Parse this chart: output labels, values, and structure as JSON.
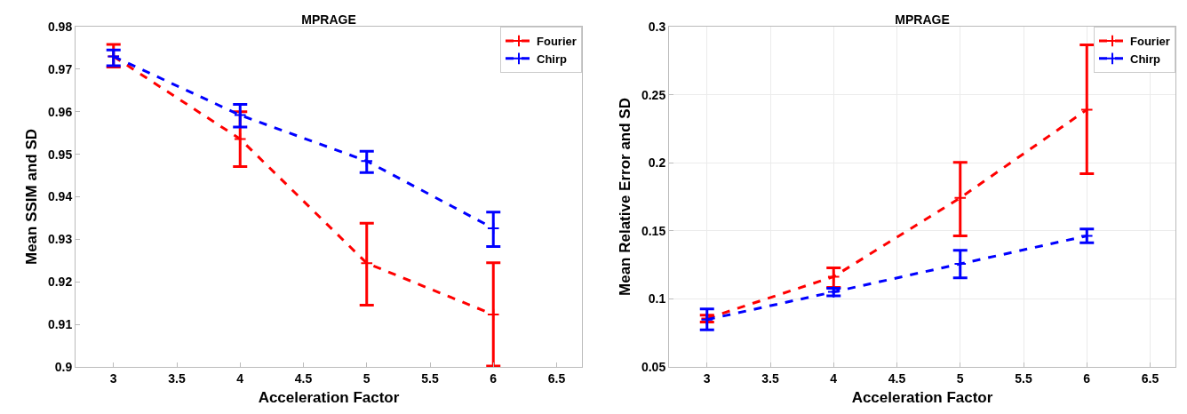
{
  "chart_data": [
    {
      "type": "line",
      "title": "MPRAGE",
      "xlabel": "Acceleration Factor",
      "ylabel": "Mean SSIM and SD",
      "x": [
        3,
        4,
        5,
        6
      ],
      "xlim": [
        2.7,
        6.7
      ],
      "xticks": [
        3,
        3.5,
        4,
        4.5,
        5,
        5.5,
        6,
        6.5
      ],
      "ylim": [
        0.9,
        0.98
      ],
      "yticks": [
        0.9,
        0.91,
        0.92,
        0.93,
        0.94,
        0.95,
        0.96,
        0.97,
        0.98
      ],
      "grid": false,
      "legend": "top right",
      "line_style": "dashed",
      "series": [
        {
          "name": "Fourier",
          "color": "#ff0000",
          "marker": "cross",
          "values": [
            0.973,
            0.9536,
            0.9244,
            0.9123
          ],
          "errors": [
            [
              0.9705,
              0.9758
            ],
            [
              0.9471,
              0.96
            ],
            [
              0.9145,
              0.9338
            ],
            [
              0.9002,
              0.9245
            ]
          ]
        },
        {
          "name": "Chirp",
          "color": "#0000ff",
          "marker": "cross",
          "values": [
            0.973,
            0.9592,
            0.9484,
            0.9326
          ],
          "errors": [
            [
              0.9708,
              0.9745
            ],
            [
              0.9564,
              0.9617
            ],
            [
              0.9457,
              0.9507
            ],
            [
              0.9283,
              0.9364
            ]
          ]
        }
      ]
    },
    {
      "type": "line",
      "title": "MPRAGE",
      "xlabel": "Acceleration Factor",
      "ylabel": "Mean Relative Error and SD",
      "x": [
        3,
        4,
        5,
        6
      ],
      "xlim": [
        2.7,
        6.7
      ],
      "xticks": [
        3,
        3.5,
        4,
        4.5,
        5,
        5.5,
        6,
        6.5
      ],
      "ylim": [
        0.05,
        0.3
      ],
      "yticks": [
        0.05,
        0.1,
        0.15,
        0.2,
        0.25,
        0.3
      ],
      "grid": true,
      "legend": "top right",
      "line_style": "dashed",
      "series": [
        {
          "name": "Fourier",
          "color": "#ff0000",
          "marker": "cross",
          "values": [
            0.0856,
            0.1163,
            0.1742,
            0.239
          ],
          "errors": [
            [
              0.083,
              0.088
            ],
            [
              0.1085,
              0.1227
            ],
            [
              0.1463,
              0.2003
            ],
            [
              0.192,
              0.2866
            ]
          ]
        },
        {
          "name": "Chirp",
          "color": "#0000ff",
          "marker": "cross",
          "values": [
            0.0848,
            0.1051,
            0.1257,
            0.1463
          ],
          "errors": [
            [
              0.0773,
              0.0926
            ],
            [
              0.1023,
              0.1078
            ],
            [
              0.1154,
              0.1357
            ],
            [
              0.1413,
              0.1513
            ]
          ]
        }
      ]
    }
  ]
}
